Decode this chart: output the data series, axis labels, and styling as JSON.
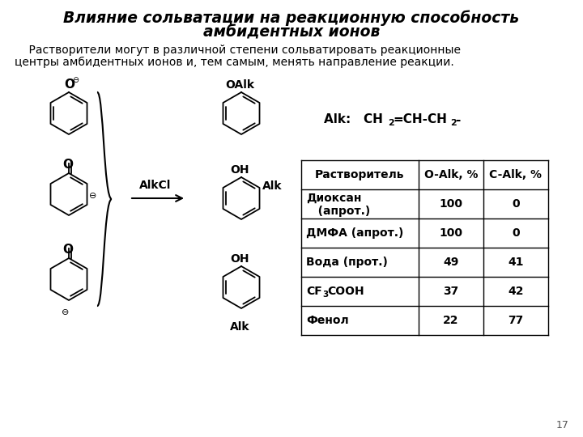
{
  "title_line1": "Влияние сольватации на реакционную способность",
  "title_line2": "амбидентных ионов",
  "body_text_line1": "    Растворители могут в различной степени сольватировать реакционные",
  "body_text_line2": "центры амбидентных ионов и, тем самым, менять направление реакции.",
  "table_headers": [
    "Растворитель",
    "O-Alk, %",
    "C-Alk, %"
  ],
  "table_rows": [
    [
      "Диоксан\n   (апрот.)",
      "100",
      "0"
    ],
    [
      "ДМФА (апрот.)",
      "100",
      "0"
    ],
    [
      "Вода (прот.)",
      "49",
      "41"
    ],
    [
      "CF3COOH",
      "37",
      "42"
    ],
    [
      "Фенол",
      "22",
      "77"
    ]
  ],
  "page_number": "17",
  "bg_color": "#ffffff",
  "title_color": "#000000",
  "body_color": "#000000"
}
